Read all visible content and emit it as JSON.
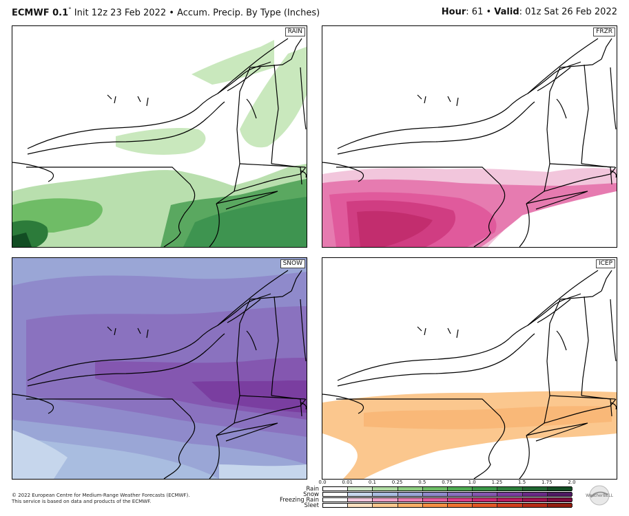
{
  "header": {
    "model": "ECMWF 0.1",
    "degree": "°",
    "init_text": " Init 12z 23 Feb 2022 • Accum. Precip. By Type (Inches)",
    "hour_label": "Hour",
    "hour_value": ": 61 • ",
    "valid_label": "Valid",
    "valid_value": ": 01z Sat 26 Feb 2022"
  },
  "panels": {
    "rain": "RAIN",
    "frzr": "FRZR",
    "snow": "SNOW",
    "icep": "ICEP"
  },
  "legend": {
    "ticks": [
      "0.0",
      "0.01",
      "0.1",
      "0.25",
      "0.5",
      "0.75",
      "1.0",
      "1.25",
      "1.5",
      "1.75",
      "2.0"
    ],
    "rows": [
      "Rain",
      "Snow",
      "Freezing Rain",
      "Sleet"
    ],
    "colors": {
      "rain": [
        "#ffffff",
        "#cfe8c8",
        "#b0dca3",
        "#8fce82",
        "#6dbd66",
        "#4fab53",
        "#3a9748",
        "#2c7f3b",
        "#1f6631",
        "#124d23"
      ],
      "snow": [
        "#ffffff",
        "#c6d6ec",
        "#a9bde0",
        "#9aa6d6",
        "#8f8acb",
        "#8a72bf",
        "#8457b0",
        "#7a3ea0",
        "#692a86",
        "#4f1a63"
      ],
      "frzr": [
        "#ffffff",
        "#f2c6dc",
        "#eda0c6",
        "#e67bb0",
        "#e05a9c",
        "#d63d86",
        "#c72a72",
        "#b51d60",
        "#9c1450",
        "#7d0d3f"
      ],
      "sleet": [
        "#ffffff",
        "#fde0bf",
        "#fbc78e",
        "#f9ae66",
        "#f58f44",
        "#ee7230",
        "#e25625",
        "#cf3d1c",
        "#b52a15",
        "#931d0f"
      ]
    }
  },
  "footer": {
    "line1": "© 2022 European Centre for Medium-Range Weather Forecasts (ECMWF).",
    "line2": "This service is based on data and products of the ECMWF."
  },
  "logo_text": "WeatherBELL"
}
